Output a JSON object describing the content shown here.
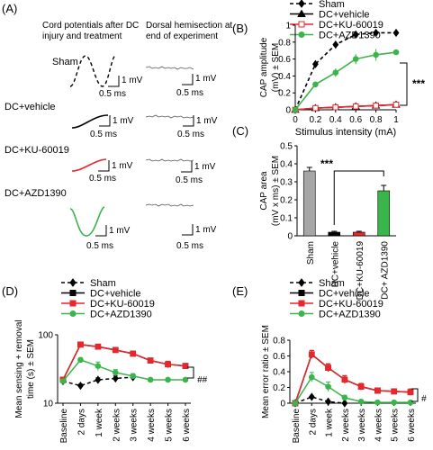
{
  "panels": {
    "A": {
      "label": "(A)",
      "col1_title": [
        "Cord potentials after DC",
        "injury and treatment"
      ],
      "col2_title": [
        "Dorsal hemisection at",
        "end of experiment"
      ],
      "rows": [
        {
          "name": "Sham",
          "trace": "sham",
          "color": "#000000",
          "dashed": true
        },
        {
          "name": "DC+vehicle",
          "trace": "vehicle",
          "color": "#000000",
          "dashed": false
        },
        {
          "name": "DC+KU-60019",
          "trace": "ku",
          "color": "#e8262b",
          "dashed": false
        },
        {
          "name": "DC+AZD1390",
          "trace": "azd",
          "color": "#3ab54a",
          "dashed": false
        }
      ],
      "scale_time": "0.5 ms",
      "scale_amp": "1 mV"
    },
    "B": {
      "label": "(B)",
      "legend": [
        "Sham",
        "DC+vehicle",
        "DC+KU-60019",
        "DC+AZD1390"
      ],
      "significance": "***"
    },
    "C": {
      "label": "(C)",
      "significance": "***"
    },
    "D": {
      "label": "(D)",
      "legend": [
        "Sham",
        "DC+vehicle",
        "DC+KU-60019",
        "DC+AZD1390"
      ],
      "significance": "##"
    },
    "E": {
      "label": "(E)",
      "legend": [
        "Sham",
        "DC+vehicle",
        "DC+KU-60019",
        "DC+AZD1390"
      ],
      "significance": "#"
    }
  },
  "colors": {
    "sham": "#000000",
    "vehicle": "#000000",
    "ku": "#e8262b",
    "azd": "#3ab54a",
    "bar_sham": "#a6a6a6"
  },
  "chart_data": [
    {
      "panel": "B",
      "type": "line",
      "xlabel": "Stimulus intensity (mA)",
      "ylabel": [
        "CAP amplitude",
        "(mV) ± SEM"
      ],
      "x": [
        0,
        0.2,
        0.4,
        0.6,
        0.8,
        1
      ],
      "xticks": [
        "0",
        "0.2",
        "0.4",
        "0.6",
        "0.8",
        "1"
      ],
      "xlim": [
        0,
        1
      ],
      "ylim": [
        0,
        1
      ],
      "yticks": [
        "0",
        "0.2",
        "0.4",
        "0.6",
        "0.8",
        "1"
      ],
      "series": [
        {
          "name": "Sham",
          "values": [
            0,
            0.54,
            0.77,
            0.89,
            0.91,
            0.91
          ],
          "err": [
            0,
            0.02,
            0.02,
            0.02,
            0.02,
            0.02
          ]
        },
        {
          "name": "DC+vehicle",
          "values": [
            0,
            0.02,
            0.03,
            0.04,
            0.05,
            0.06
          ],
          "err": [
            0,
            0.01,
            0.01,
            0.02,
            0.02,
            0.02
          ]
        },
        {
          "name": "DC+KU-60019",
          "values": [
            0,
            0.02,
            0.03,
            0.04,
            0.05,
            0.06
          ],
          "err": [
            0,
            0.01,
            0.01,
            0.02,
            0.02,
            0.02
          ]
        },
        {
          "name": "DC+AZD1390",
          "values": [
            0,
            0.3,
            0.44,
            0.6,
            0.65,
            0.68
          ],
          "err": [
            0,
            0.03,
            0.05,
            0.06,
            0.07,
            0.03
          ]
        }
      ]
    },
    {
      "panel": "C",
      "type": "bar",
      "ylabel": [
        "CAP area",
        "(mV x ms) ± SEM"
      ],
      "categories": [
        "Sham",
        "DC+vehicle",
        "DC+KU-60019",
        "DC+ AZD1390"
      ],
      "values": [
        0.36,
        0.02,
        0.02,
        0.25
      ],
      "err": [
        0.02,
        0.005,
        0.005,
        0.03
      ],
      "ylim": [
        0,
        0.5
      ],
      "yticks": [
        "0",
        "0.1",
        "0.2",
        "0.3",
        "0.4",
        "0.5"
      ]
    },
    {
      "panel": "D",
      "type": "line",
      "ylabel": [
        "Mean sensing + removal",
        "time (s) ± SEM"
      ],
      "yscale": "log",
      "ylim": [
        10,
        100
      ],
      "yticks": [
        "10",
        "100"
      ],
      "categories": [
        "Baseline",
        "2 days",
        "1 week",
        "2 weeks",
        "3 weeks",
        "4 weeks",
        "5 weeks",
        "6 weeks"
      ],
      "series": [
        {
          "name": "Sham",
          "values": [
            21,
            18,
            22,
            23,
            24,
            null,
            null,
            null
          ],
          "err": [
            1,
            1,
            1.5,
            2,
            1.5,
            0,
            0,
            0
          ]
        },
        {
          "name": "DC+vehicle",
          "values": [
            22,
            72,
            67,
            60,
            53,
            42,
            37,
            35
          ],
          "err": [
            1,
            3,
            3,
            3,
            3,
            3,
            4,
            3
          ]
        },
        {
          "name": "DC+KU-60019",
          "values": [
            22,
            72,
            67,
            60,
            53,
            42,
            37,
            35
          ],
          "err": [
            1,
            3,
            3,
            3,
            3,
            3,
            4,
            3
          ]
        },
        {
          "name": "DC+AZD1390",
          "values": [
            21,
            43,
            35,
            28,
            25,
            22,
            22,
            22
          ],
          "err": [
            1,
            3,
            5,
            3,
            2,
            1,
            1,
            1
          ]
        }
      ]
    },
    {
      "panel": "E",
      "type": "line",
      "ylabel": [
        "Mean error ratio ± SEM"
      ],
      "ylim": [
        0,
        0.8
      ],
      "yticks": [
        "0",
        "0.2",
        "0.4",
        "0.6",
        "0.8"
      ],
      "categories": [
        "Baseline",
        "2 days",
        "1 week",
        "2 weeks",
        "3 weeks",
        "4 weeks",
        "5 weeks",
        "6 weeks"
      ],
      "series": [
        {
          "name": "Sham",
          "values": [
            0,
            0.08,
            0.02,
            0,
            null,
            null,
            null,
            null
          ],
          "err": [
            0,
            0.01,
            0.01,
            0,
            0,
            0,
            0,
            0
          ]
        },
        {
          "name": "DC+vehicle",
          "values": [
            0,
            0.62,
            0.45,
            0.3,
            0.21,
            0.16,
            0.15,
            0.14
          ],
          "err": [
            0,
            0.05,
            0.05,
            0.05,
            0.04,
            0.03,
            0.03,
            0.04
          ]
        },
        {
          "name": "DC+KU-60019",
          "values": [
            0,
            0.62,
            0.45,
            0.3,
            0.21,
            0.16,
            0.15,
            0.14
          ],
          "err": [
            0,
            0.05,
            0.05,
            0.05,
            0.04,
            0.03,
            0.03,
            0.04
          ]
        },
        {
          "name": "DC+AZD1390",
          "values": [
            0,
            0.33,
            0.21,
            0.07,
            0.02,
            0.01,
            0.01,
            0.01
          ],
          "err": [
            0,
            0.06,
            0.06,
            0.03,
            0.02,
            0.01,
            0.01,
            0.01
          ]
        }
      ]
    }
  ]
}
